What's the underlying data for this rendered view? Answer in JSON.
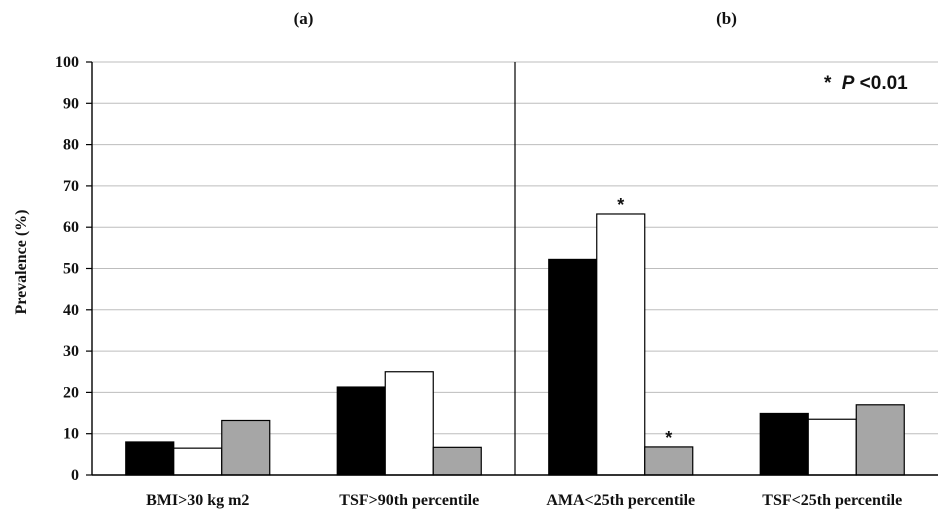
{
  "chart_data": {
    "type": "bar",
    "panels": [
      {
        "label": "(a)",
        "categories": [
          "BMI>30 kg m2",
          "TSF>90th percentile"
        ]
      },
      {
        "label": "(b)",
        "categories": [
          "AMA<25th percentile",
          "TSF<25th percentile"
        ]
      }
    ],
    "categories": [
      "BMI>30 kg m2",
      "TSF>90th percentile",
      "AMA<25th percentile",
      "TSF<25th percentile"
    ],
    "series": [
      {
        "color": "#000000",
        "values": [
          8,
          21.3,
          52.2,
          14.9
        ]
      },
      {
        "color": "#ffffff",
        "values": [
          6.5,
          25,
          63.2,
          13.5
        ]
      },
      {
        "color": "#a6a6a6",
        "values": [
          13.2,
          6.7,
          6.8,
          17
        ]
      }
    ],
    "significance_markers": [
      {
        "category": "AMA<25th percentile",
        "series_index": 1,
        "symbol": "*"
      },
      {
        "category": "AMA<25th percentile",
        "series_index": 2,
        "symbol": "*"
      }
    ],
    "ylabel": "Prevalence (%)",
    "ylim": [
      0,
      100
    ],
    "yticks": [
      0,
      10,
      20,
      30,
      40,
      50,
      60,
      70,
      80,
      90,
      100
    ],
    "grid": true,
    "annotation": {
      "star": "*",
      "p": "P",
      "rest": "<0.01"
    }
  }
}
